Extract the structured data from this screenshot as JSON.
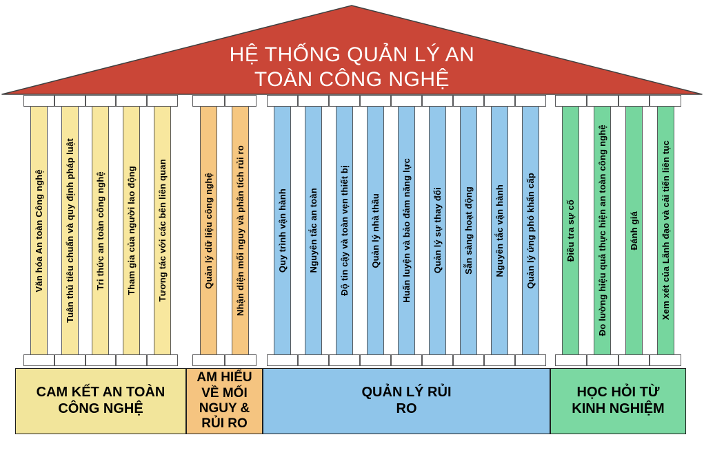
{
  "title": "HỆ THỐNG QUẢN LÝ AN TOÀN CÔNG NGHỆ",
  "colors": {
    "roof_fill": "#CA4637",
    "roof_border": "#404040",
    "pillar_border": "#58585A",
    "capital_fill": "#FFFFFF",
    "foundation_border": "#1D1D1D",
    "label_text": "#000000",
    "title_text": "#FFFFFF"
  },
  "groups": [
    {
      "id": "safety-commitment",
      "pillar_color": "#F8E79E",
      "foundation_color": "#F2E59B",
      "foundation_label": "CAM KẾT AN TOÀN CÔNG NGHỆ",
      "pillars": [
        "Văn hóa An toàn Công nghệ",
        "Tuân thủ tiêu chuẩn và quy định pháp luật",
        "Tri thức an toàn công nghệ",
        "Tham gia của người lao động",
        "Tương tác với các bên liên quan"
      ]
    },
    {
      "id": "hazard-risk-understanding",
      "pillar_color": "#F6C781",
      "foundation_color": "#F5C480",
      "foundation_label": "AM HIỂU VỀ MỐI NGUY & RỦI RO",
      "pillars": [
        "Quản lý dữ liệu công nghệ",
        "Nhận diện mối nguy và phân tích rủi ro"
      ]
    },
    {
      "id": "risk-management",
      "pillar_color": "#94C8EB",
      "foundation_color": "#8FC5EA",
      "foundation_label": "QUẢN LÝ RỦI RO",
      "pillars": [
        "Quy trình vận hành",
        "Nguyên tắc an toàn",
        "Độ tin cậy và toàn vẹn thiết bị",
        "Quản lý nhà thầu",
        "Huấn luyện và bảo đảm năng lực",
        "Quản lý sự thay đổi",
        "Sẵn sàng hoạt động",
        "Nguyên tắc vận hành",
        "Quản lý ứng phó khẩn cấp"
      ]
    },
    {
      "id": "learn-from-experience",
      "pillar_color": "#76D69E",
      "foundation_color": "#7BD8A2",
      "foundation_label": "HỌC HỎI TỪ KINH NGHIỆM",
      "pillars": [
        "Điều tra sự cố",
        "Đo lường hiệu quả thực hiện an toàn công nghệ",
        "Đánh giá",
        "Xem xét của Lãnh đạo và cải tiến liên tục"
      ]
    }
  ]
}
